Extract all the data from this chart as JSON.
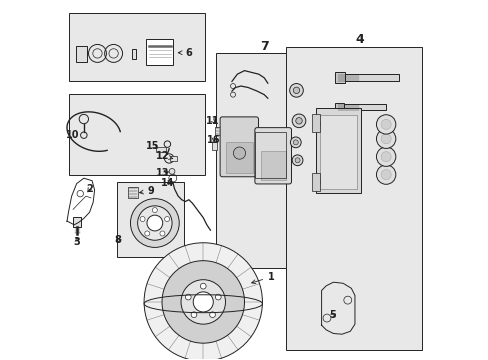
{
  "bg_color": "#ffffff",
  "box_fill": "#e8e8e8",
  "line_color": "#222222",
  "fig_width": 4.89,
  "fig_height": 3.6,
  "dpi": 100
}
